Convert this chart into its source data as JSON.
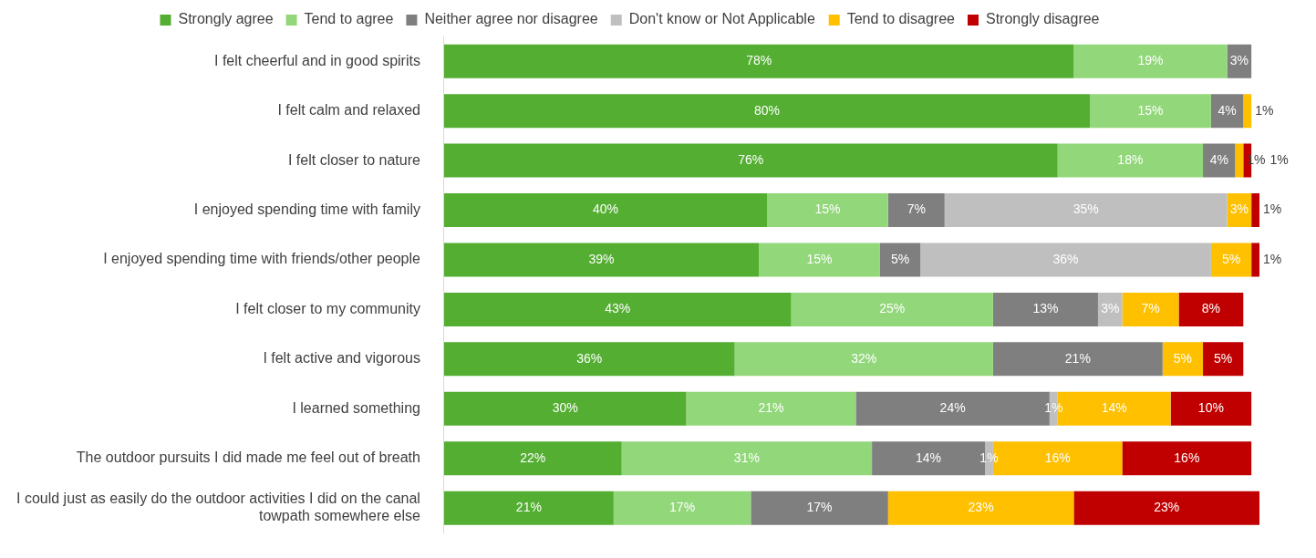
{
  "chart_data": {
    "type": "bar",
    "orientation": "horizontal",
    "stacked": true,
    "categories": [
      "I felt cheerful and in good spirits",
      "I felt calm and relaxed",
      "I felt closer to nature",
      "I enjoyed spending time with family",
      "I enjoyed spending time with friends/other people",
      "I felt closer to my community",
      "I felt active and vigorous",
      "I learned something",
      "The outdoor pursuits I did made me feel out of breath",
      "I could just as easily do the outdoor activities I did on the canal towpath somewhere else"
    ],
    "series": [
      {
        "name": "Strongly agree",
        "color": "#53ae32",
        "values": [
          78,
          80,
          76,
          40,
          39,
          43,
          36,
          30,
          22,
          21
        ],
        "value_labels": [
          "78%",
          "80%",
          "76%",
          "40%",
          "39%",
          "43%",
          "36%",
          "30%",
          "22%",
          "21%"
        ]
      },
      {
        "name": "Tend to agree",
        "color": "#92d77a",
        "values": [
          19,
          15,
          18,
          15,
          15,
          25,
          32,
          21,
          31,
          17
        ],
        "value_labels": [
          "19%",
          "15%",
          "18%",
          "15%",
          "15%",
          "25%",
          "32%",
          "21%",
          "31%",
          "17%"
        ]
      },
      {
        "name": "Neither agree nor disagree",
        "color": "#7f7f7f",
        "values": [
          3,
          4,
          4,
          7,
          5,
          13,
          21,
          24,
          14,
          17
        ],
        "value_labels": [
          "3%",
          "4%",
          "4%",
          "7%",
          "5%",
          "13%",
          "21%",
          "24%",
          "14%",
          "17%"
        ]
      },
      {
        "name": "Don't know or Not Applicable",
        "color": "#bfbfbf",
        "values": [
          null,
          null,
          null,
          35,
          36,
          3,
          null,
          1,
          1,
          null
        ],
        "value_labels": [
          null,
          null,
          null,
          "35%",
          "36%",
          "3%",
          null,
          "1%",
          "1%",
          null
        ]
      },
      {
        "name": "Tend to disagree",
        "color": "#ffc000",
        "values": [
          null,
          1,
          1,
          3,
          5,
          7,
          5,
          14,
          16,
          23
        ],
        "value_labels": [
          null,
          "1%",
          "1%",
          "3%",
          "5%",
          "7%",
          "5%",
          "14%",
          "16%",
          "23%"
        ]
      },
      {
        "name": "Strongly disagree",
        "color": "#c00000",
        "values": [
          null,
          null,
          1,
          1,
          1,
          8,
          5,
          10,
          16,
          23
        ],
        "value_labels": [
          null,
          null,
          "1%",
          "1%",
          "1%",
          "8%",
          "5%",
          "10%",
          "16%",
          "23%"
        ]
      }
    ],
    "tick_labels": "y",
    "grid": false,
    "legend": "top"
  }
}
